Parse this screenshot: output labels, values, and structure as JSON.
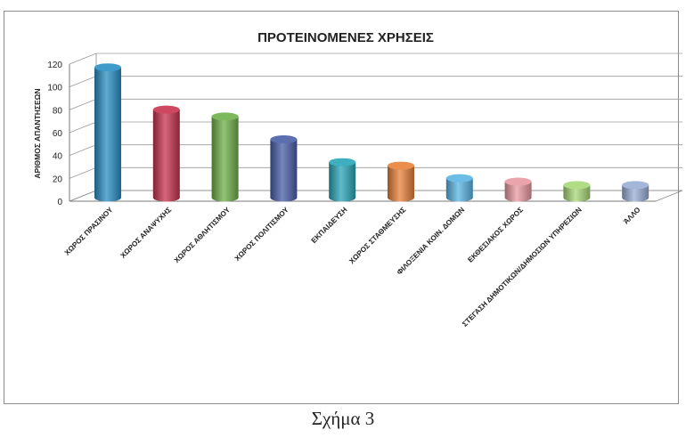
{
  "chart_data": {
    "type": "bar",
    "title": "ΠΡΟΤΕΙΝΟΜΕΝΕΣ ΧΡΗΣΕΙΣ",
    "xlabel": "",
    "ylabel": "ΑΡΙΘΜΟΣ ΑΠΑΝΤΗΣΕΩΝ",
    "ylim": [
      0,
      120
    ],
    "yticks": [
      0,
      20,
      40,
      60,
      80,
      100,
      120
    ],
    "grid": true,
    "legend": "none",
    "categories": [
      "ΧΩΡΟΣ ΠΡΑΣΙΝΟΥ",
      "ΧΩΡΟΣ ΑΝΑΨΥΧΗΣ",
      "ΧΩΡΟΣ ΑΘΛΗΤΙΣΜΟΥ",
      "ΧΩΡΟΣ ΠΟΛΙΤΙΣΜΟΥ",
      "ΕΚΠΑΙΔΕΥΣΗ",
      "ΧΩΡΟΣ ΣΤΑΘΜΕΥΣΗΣ",
      "ΦΙΛΟΞΕΝΙΑ ΚΟΙΝ. ΔΟΜΩΝ",
      "ΕΚΘΕΣΙΑΚΟΣ ΧΩΡΟΣ",
      "ΣΤΕΓΑΣΗ ΔΗΜΟΤΙΚΩΝ/ΔΗΜΟΣΙΩΝ ΥΠΗΡΕΣΙΩΝ",
      "ΆΛΛΟ"
    ],
    "values": [
      114,
      77,
      71,
      51,
      31,
      28,
      17,
      14,
      11,
      11
    ],
    "colors": [
      "#2b8fc4",
      "#c8344f",
      "#6fb04a",
      "#4a5fa8",
      "#2aa6b8",
      "#e8813a",
      "#5ab6e3",
      "#e89aa2",
      "#a8d878",
      "#9aaed6"
    ]
  },
  "caption": "Σχήμα 3"
}
